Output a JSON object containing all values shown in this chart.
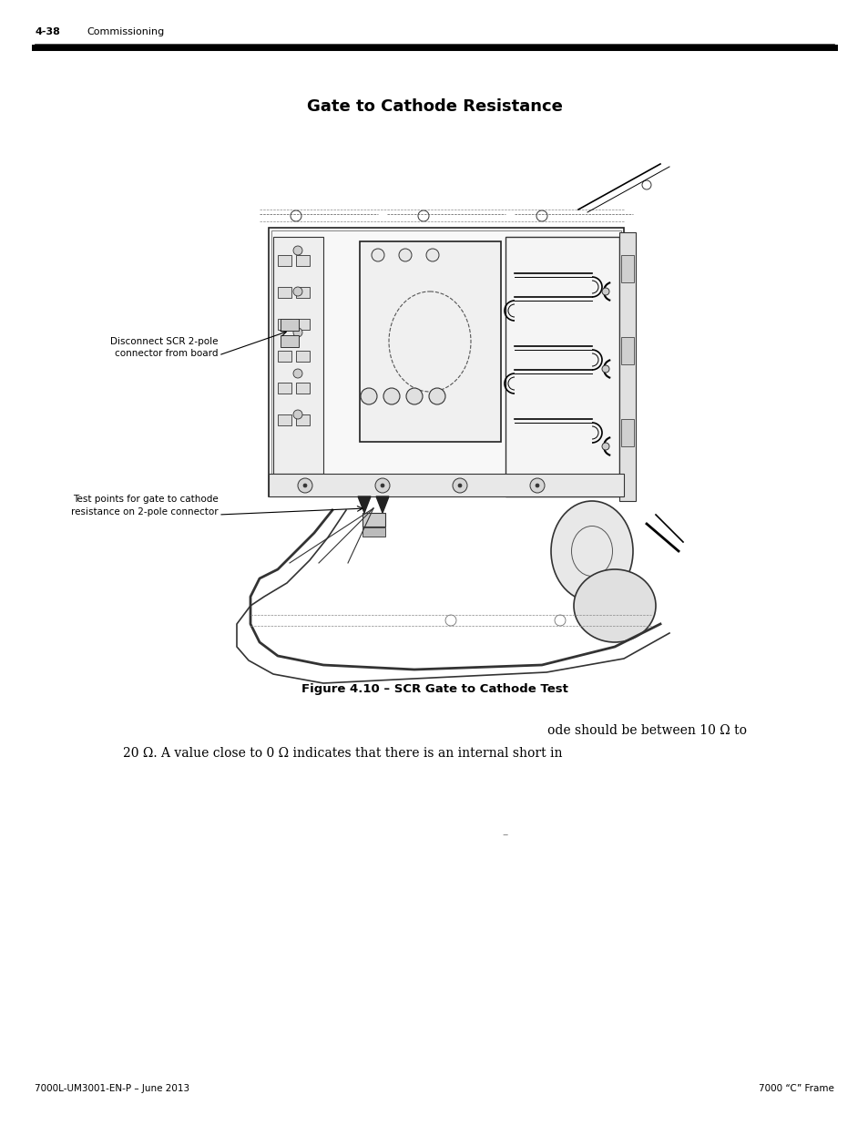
{
  "page_number_left": "4-38",
  "section_title": "Commissioning",
  "main_title": "Gate to Cathode Resistance",
  "figure_caption": "Figure 4.10 – SCR Gate to Cathode Test",
  "label1_line1": "Disconnect SCR 2-pole",
  "label1_line2": "connector from board",
  "label2_line1": "Test points for gate to cathode",
  "label2_line2": "resistance on 2-pole connector",
  "body_text_line1": "ode should be between 10 Ω to",
  "body_text_line2": "20 Ω. A value close to 0 Ω indicates that there is an internal short in",
  "footer_left": "7000L-UM3001-EN-P – June 2013",
  "footer_right": "7000 “C” Frame",
  "bg_color": "#ffffff",
  "text_color": "#000000",
  "dash_color": "#888888"
}
